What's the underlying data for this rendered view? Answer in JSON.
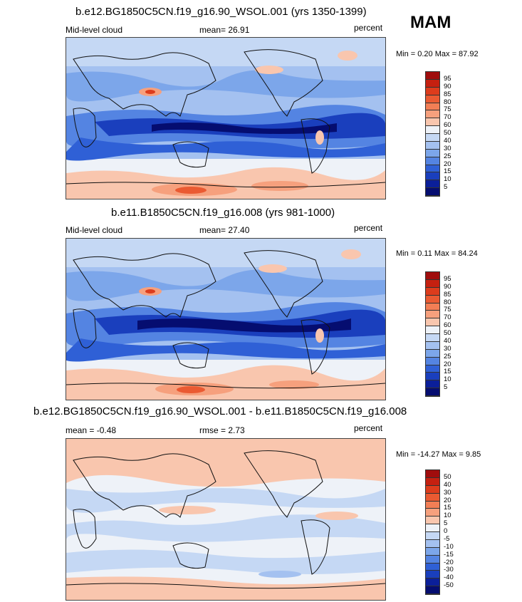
{
  "season": "MAM",
  "panels": [
    {
      "title": "b.e12.BG1850C5CN.f19_g16.90_WSOL.001 (yrs 1350-1399)",
      "left_label": "Mid-level cloud",
      "center_label": "mean=  26.91",
      "right_label": "percent",
      "minmax": "Min =   0.20 Max =  87.92",
      "levels": [
        "95",
        "90",
        "85",
        "80",
        "75",
        "70",
        "60",
        "50",
        "40",
        "30",
        "25",
        "20",
        "15",
        "10",
        "5"
      ],
      "colors": [
        "#a00d0d",
        "#c52010",
        "#dd3c1c",
        "#ea5a32",
        "#f27e55",
        "#f6a07d",
        "#f9c6ae",
        "#eef2f8",
        "#c5d8f4",
        "#a4c1f0",
        "#7ca6ea",
        "#5484e2",
        "#2f60d6",
        "#1a3fbd",
        "#0b1f99",
        "#050d70"
      ]
    },
    {
      "title": "b.e11.B1850C5CN.f19_g16.008 (yrs 981-1000)",
      "left_label": "Mid-level cloud",
      "center_label": "mean=  27.40",
      "right_label": "percent",
      "minmax": "Min =   0.11 Max =  84.24",
      "levels": [
        "95",
        "90",
        "85",
        "80",
        "75",
        "70",
        "60",
        "50",
        "40",
        "30",
        "25",
        "20",
        "15",
        "10",
        "5"
      ],
      "colors": [
        "#a00d0d",
        "#c52010",
        "#dd3c1c",
        "#ea5a32",
        "#f27e55",
        "#f6a07d",
        "#f9c6ae",
        "#eef2f8",
        "#c5d8f4",
        "#a4c1f0",
        "#7ca6ea",
        "#5484e2",
        "#2f60d6",
        "#1a3fbd",
        "#0b1f99",
        "#050d70"
      ]
    },
    {
      "title": "b.e12.BG1850C5CN.f19_g16.90_WSOL.001 - b.e11.B1850C5CN.f19_g16.008",
      "left_label": "mean =  -0.48",
      "center_label": "rmse =   2.73",
      "right_label": "percent",
      "minmax": "Min = -14.27 Max =   9.85",
      "levels": [
        "50",
        "40",
        "30",
        "20",
        "15",
        "10",
        "5",
        "0",
        "-5",
        "-10",
        "-15",
        "-20",
        "-30",
        "-40",
        "-50"
      ],
      "colors": [
        "#a00d0d",
        "#c52010",
        "#dd3c1c",
        "#ea5a32",
        "#f27e55",
        "#f6a07d",
        "#f9c6ae",
        "#eef2f8",
        "#c5d8f4",
        "#a4c1f0",
        "#7ca6ea",
        "#5484e2",
        "#2f60d6",
        "#1a3fbd",
        "#0b1f99",
        "#050d70"
      ]
    }
  ]
}
